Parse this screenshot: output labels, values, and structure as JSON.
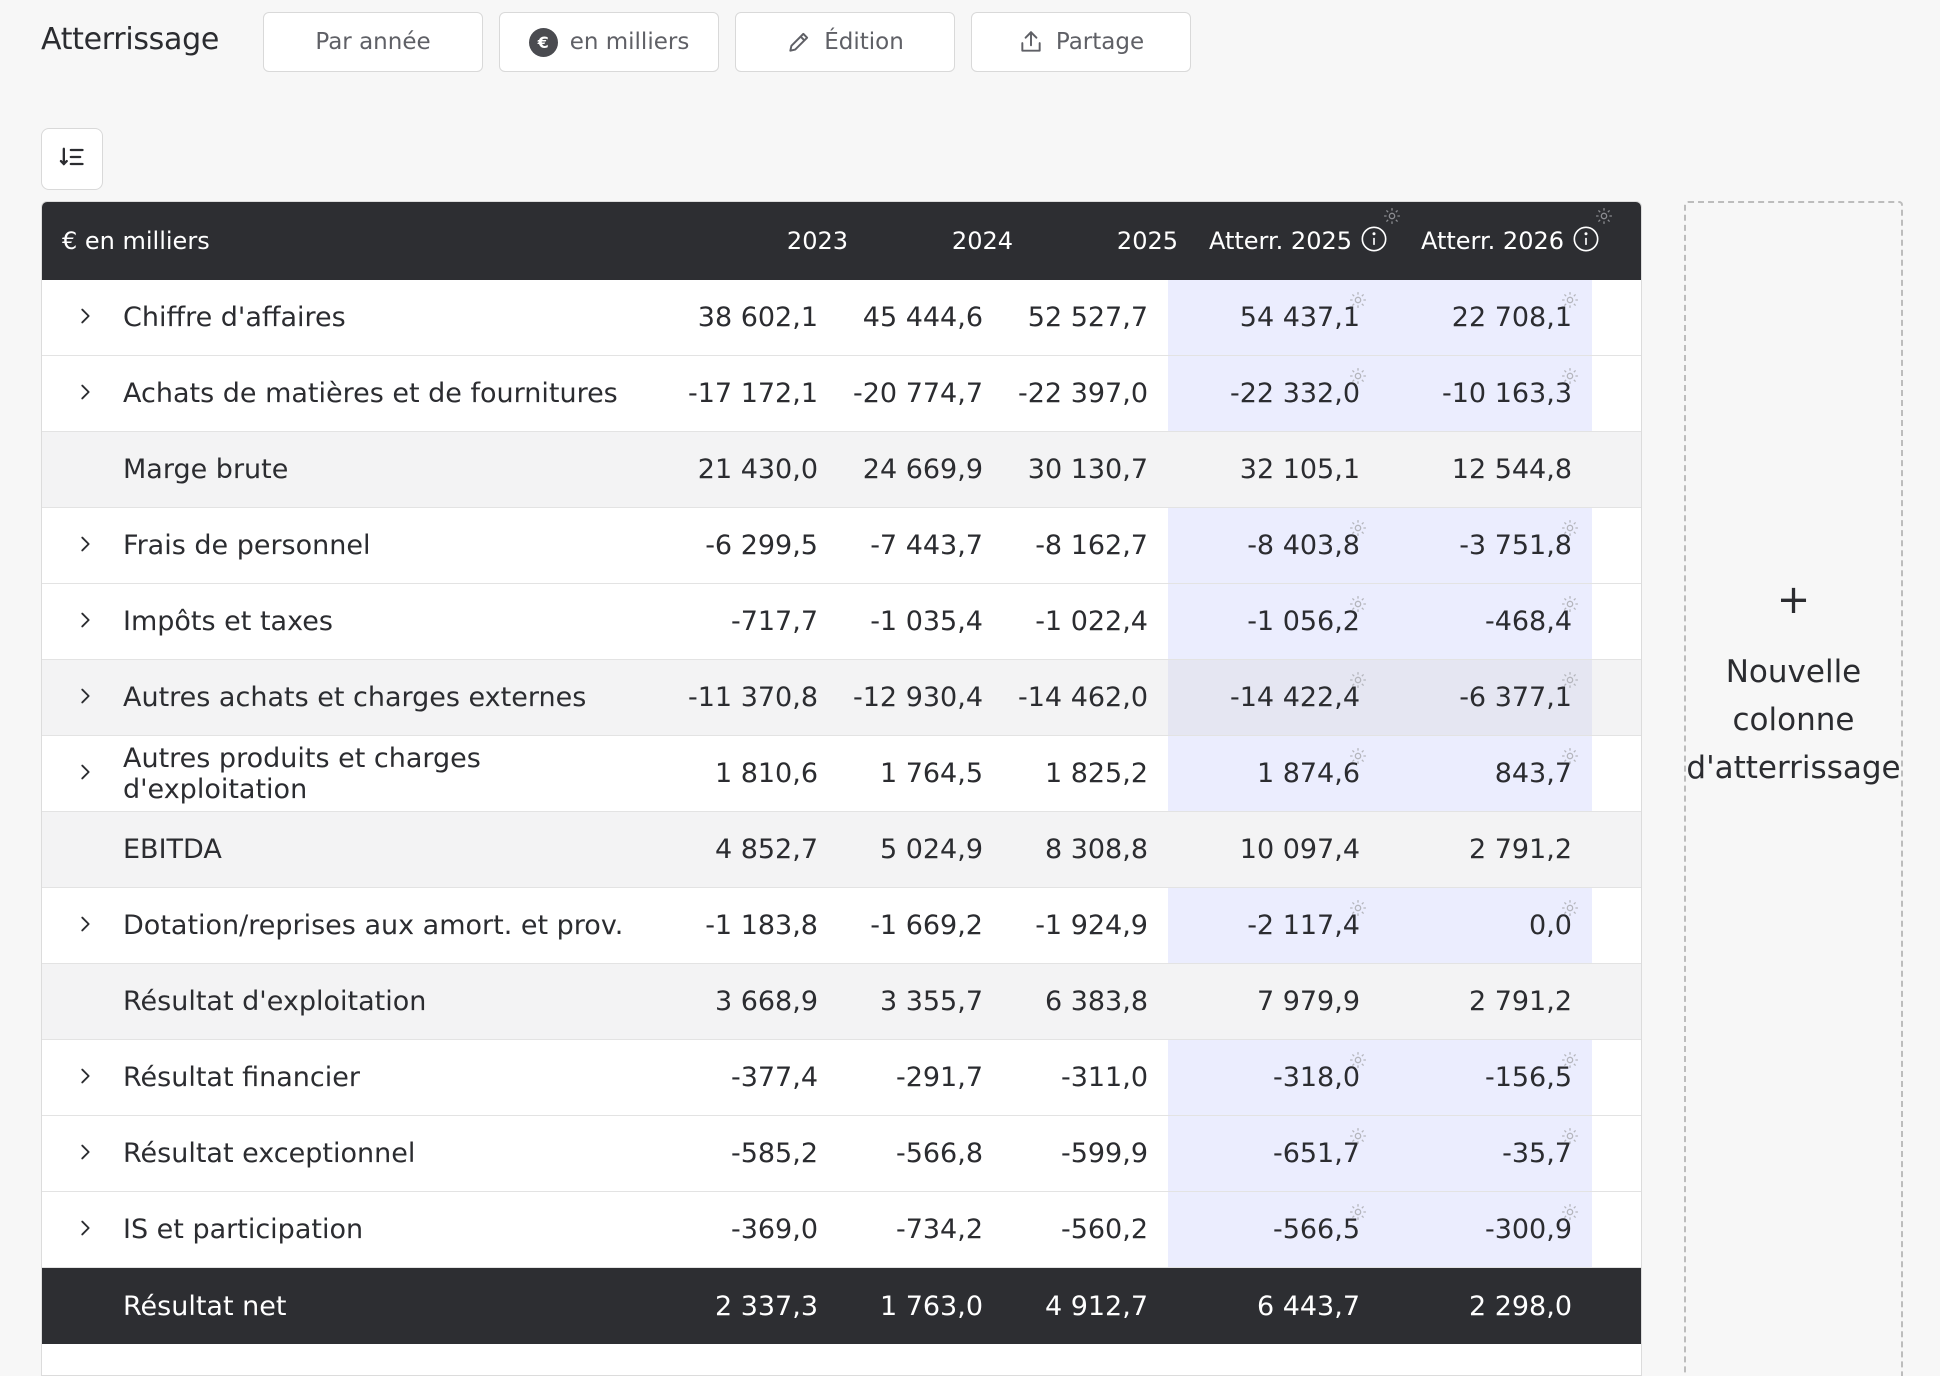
{
  "page": {
    "title": "Atterrissage"
  },
  "toolbar": {
    "period_label": "Par année",
    "currency_symbol": "€",
    "currency_label": "en milliers",
    "edit_label": "Édition",
    "share_label": "Partage"
  },
  "table": {
    "header": {
      "label": "€ en milliers",
      "col_2023": "2023",
      "col_2024": "2024",
      "col_2025": "2025",
      "col_att2025": "Atterr. 2025",
      "col_att2026": "Atterr. 2026"
    },
    "rows": [
      {
        "label": "Chiffre d'affaires",
        "v2023": "38 602,1",
        "v2024": "45 444,6",
        "v2025": "52 527,7",
        "att2025": "54 437,1",
        "att2026": "22 708,1"
      },
      {
        "label": "Achats de matières et de fournitures",
        "v2023": "-17 172,1",
        "v2024": "-20 774,7",
        "v2025": "-22 397,0",
        "att2025": "-22 332,0",
        "att2026": "-10 163,3"
      },
      {
        "label": "Marge brute",
        "v2023": "21 430,0",
        "v2024": "24 669,9",
        "v2025": "30 130,7",
        "att2025": "32 105,1",
        "att2026": "12 544,8"
      },
      {
        "label": "Frais de personnel",
        "v2023": "-6 299,5",
        "v2024": "-7 443,7",
        "v2025": "-8 162,7",
        "att2025": "-8 403,8",
        "att2026": "-3 751,8"
      },
      {
        "label": "Impôts et taxes",
        "v2023": "-717,7",
        "v2024": "-1 035,4",
        "v2025": "-1 022,4",
        "att2025": "-1 056,2",
        "att2026": "-468,4"
      },
      {
        "label": "Autres achats et charges externes",
        "v2023": "-11 370,8",
        "v2024": "-12 930,4",
        "v2025": "-14 462,0",
        "att2025": "-14 422,4",
        "att2026": "-6 377,1"
      },
      {
        "label": "Autres produits et charges d'exploitation",
        "v2023": "1 810,6",
        "v2024": "1 764,5",
        "v2025": "1 825,2",
        "att2025": "1 874,6",
        "att2026": "843,7"
      },
      {
        "label": "EBITDA",
        "v2023": "4 852,7",
        "v2024": "5 024,9",
        "v2025": "8 308,8",
        "att2025": "10 097,4",
        "att2026": "2 791,2"
      },
      {
        "label": "Dotation/reprises aux amort. et prov.",
        "v2023": "-1 183,8",
        "v2024": "-1 669,2",
        "v2025": "-1 924,9",
        "att2025": "-2 117,4",
        "att2026": "0,0"
      },
      {
        "label": "Résultat d'exploitation",
        "v2023": "3 668,9",
        "v2024": "3 355,7",
        "v2025": "6 383,8",
        "att2025": "7 979,9",
        "att2026": "2 791,2"
      },
      {
        "label": "Résultat financier",
        "v2023": "-377,4",
        "v2024": "-291,7",
        "v2025": "-311,0",
        "att2025": "-318,0",
        "att2026": "-156,5"
      },
      {
        "label": "Résultat exceptionnel",
        "v2023": "-585,2",
        "v2024": "-566,8",
        "v2025": "-599,9",
        "att2025": "-651,7",
        "att2026": "-35,7"
      },
      {
        "label": "IS et participation",
        "v2023": "-369,0",
        "v2024": "-734,2",
        "v2025": "-560,2",
        "att2025": "-566,5",
        "att2026": "-300,9"
      },
      {
        "label": "Résultat net",
        "v2023": "2 337,3",
        "v2024": "1 763,0",
        "v2025": "4 912,7",
        "att2025": "6 443,7",
        "att2026": "2 298,0"
      }
    ]
  },
  "new_column": {
    "plus": "+",
    "label": "Nouvelle colonne d'atterrissage"
  },
  "colors": {
    "header_bg": "#2d2e32",
    "landing_tint": "#ebedfe",
    "subtotal_bg": "#f3f3f4"
  }
}
